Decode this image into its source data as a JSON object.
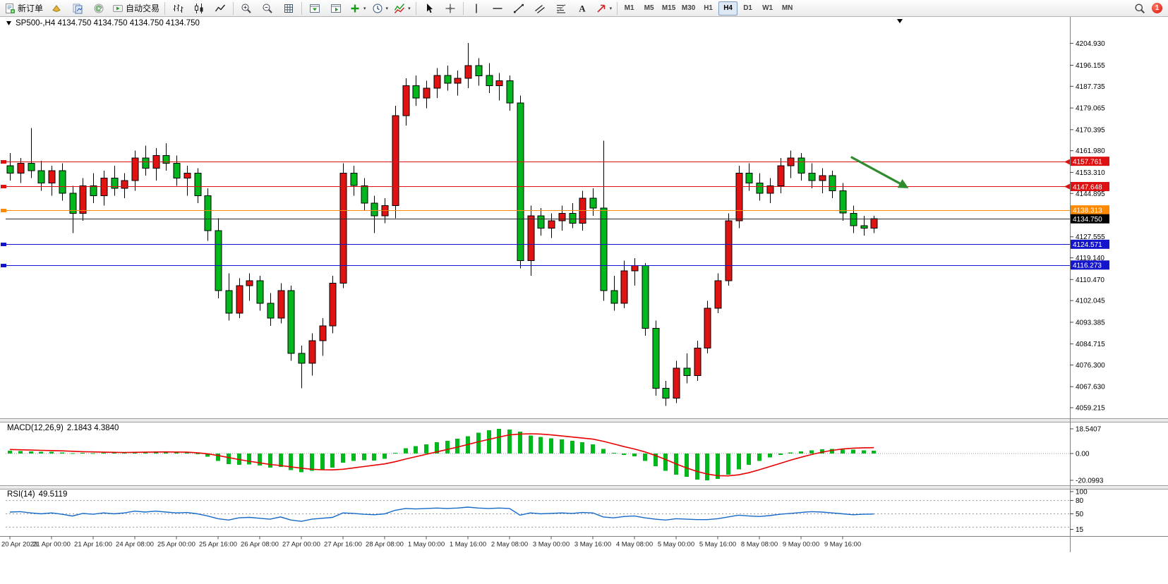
{
  "toolbar": {
    "new_order_label": "新订单",
    "auto_trading_label": "自动交易",
    "timeframes": [
      "M1",
      "M5",
      "M15",
      "M30",
      "H1",
      "H4",
      "D1",
      "W1",
      "MN"
    ],
    "active_timeframe": "H4",
    "badge_count": "1",
    "icons": [
      "new-order-icon",
      "market-icon",
      "profiles-icon",
      "community-icon",
      "autotrading-icon",
      "bar-chart-icon",
      "candlestick-icon",
      "line-chart-icon",
      "zoom-in-icon",
      "zoom-out-icon",
      "grid-icon",
      "tile-windows-icon",
      "cascade-windows-icon",
      "new-chart-icon",
      "timeframe-clock-icon",
      "indicators-icon",
      "cursor-icon",
      "crosshair-icon",
      "vertical-line-icon",
      "horizontal-line-icon",
      "trendline-icon",
      "channel-icon",
      "fibonacci-icon",
      "text-icon",
      "arrows-icon",
      "search-icon",
      "notification-badge"
    ]
  },
  "chart": {
    "header_text": "SP500-,H4 4134.750 4134.750 4134.750 4134.750",
    "symbol": "SP500-",
    "period": "H4"
  },
  "chart_data": [
    {
      "type": "candlestick",
      "title": "SP500-,H4",
      "up_color": "#e01212",
      "down_color": "#00b81c",
      "wick_color": "#000000",
      "ylim": [
        4055.0,
        4210.4
      ],
      "x_labels": [
        "20 Apr 2023",
        "21 Apr 00:00",
        "21 Apr 16:00",
        "24 Apr 08:00",
        "25 Apr 00:00",
        "25 Apr 16:00",
        "26 Apr 08:00",
        "27 Apr 00:00",
        "27 Apr 16:00",
        "28 Apr 08:00",
        "1 May 00:00",
        "1 May 16:00",
        "2 May 08:00",
        "3 May 00:00",
        "3 May 16:00",
        "4 May 08:00",
        "5 May 00:00",
        "5 May 16:00",
        "8 May 08:00",
        "9 May 00:00",
        "9 May 16:00"
      ],
      "y_ticks": [
        "4204.930",
        "4196.155",
        "4187.735",
        "4179.065",
        "4170.395",
        "4161.980",
        "4153.310",
        "4144.895",
        "4127.555",
        "4119.140",
        "4110.470",
        "4102.045",
        "4093.385",
        "4084.715",
        "4076.300",
        "4067.630",
        "4059.215"
      ],
      "hlines": [
        {
          "label": "4157.761",
          "value": 4157.761,
          "color": "#dd1111",
          "left_marker": true,
          "right_marker": true,
          "is_current_price": false
        },
        {
          "label": "4147.648",
          "value": 4147.648,
          "color": "#dd1111",
          "left_marker": true,
          "right_marker": true,
          "is_current_price": false
        },
        {
          "label": "4138.313",
          "value": 4138.313,
          "color": "#ff8a00",
          "left_marker": true,
          "right_marker": false,
          "is_current_price": false
        },
        {
          "label": "4134.750",
          "value": 4134.75,
          "color": "#2a2a2a",
          "left_marker": false,
          "right_marker": false,
          "is_current_price": true
        },
        {
          "label": "4124.571",
          "value": 4124.571,
          "color": "#1414cc",
          "left_marker": true,
          "right_marker": false,
          "is_current_price": false
        },
        {
          "label": "4116.273",
          "value": 4116.273,
          "color": "#1414cc",
          "left_marker": true,
          "right_marker": false,
          "is_current_price": false
        }
      ],
      "annotation": {
        "type": "arrow",
        "from_index": 80.8,
        "from_price": 4159.5,
        "to_index": 85.8,
        "to_price": 4148.2,
        "color": "#2e8b2e"
      },
      "ohlc": [
        [
          4156,
          4161,
          4150,
          4153
        ],
        [
          4153,
          4159,
          4149,
          4157
        ],
        [
          4157,
          4171,
          4151,
          4154
        ],
        [
          4154,
          4158,
          4146,
          4149
        ],
        [
          4149,
          4156,
          4144,
          4154
        ],
        [
          4154,
          4157,
          4142,
          4145
        ],
        [
          4145,
          4148,
          4129,
          4137
        ],
        [
          4137,
          4151,
          4134,
          4148
        ],
        [
          4148,
          4153,
          4141,
          4144
        ],
        [
          4144,
          4154,
          4140,
          4151
        ],
        [
          4151,
          4156,
          4144,
          4147
        ],
        [
          4147,
          4153,
          4143,
          4150
        ],
        [
          4150,
          4162,
          4146,
          4159
        ],
        [
          4159,
          4164,
          4152,
          4155
        ],
        [
          4155,
          4163,
          4150,
          4160
        ],
        [
          4160,
          4165,
          4154,
          4157
        ],
        [
          4157,
          4160,
          4148,
          4151
        ],
        [
          4151,
          4156,
          4144,
          4153
        ],
        [
          4153,
          4155,
          4141,
          4144
        ],
        [
          4144,
          4147,
          4126,
          4130
        ],
        [
          4130,
          4135,
          4103,
          4106
        ],
        [
          4106,
          4113,
          4094,
          4097
        ],
        [
          4097,
          4111,
          4095,
          4108
        ],
        [
          4108,
          4113,
          4102,
          4110
        ],
        [
          4110,
          4112,
          4098,
          4101
        ],
        [
          4101,
          4105,
          4092,
          4095
        ],
        [
          4095,
          4109,
          4093,
          4106
        ],
        [
          4106,
          4108,
          4078,
          4081
        ],
        [
          4081,
          4084,
          4067,
          4077
        ],
        [
          4077,
          4089,
          4072,
          4086
        ],
        [
          4086,
          4095,
          4080,
          4092
        ],
        [
          4092,
          4112,
          4089,
          4109
        ],
        [
          4109,
          4157,
          4107,
          4153
        ],
        [
          4153,
          4156,
          4144,
          4148
        ],
        [
          4148,
          4151,
          4138,
          4141
        ],
        [
          4141,
          4144,
          4129,
          4136
        ],
        [
          4136,
          4143,
          4133,
          4140
        ],
        [
          4140,
          4180,
          4135,
          4176
        ],
        [
          4176,
          4191,
          4172,
          4188
        ],
        [
          4188,
          4192,
          4180,
          4183
        ],
        [
          4183,
          4190,
          4179,
          4187
        ],
        [
          4187,
          4195,
          4183,
          4192
        ],
        [
          4192,
          4196,
          4186,
          4189
        ],
        [
          4189,
          4194,
          4184,
          4191
        ],
        [
          4191,
          4205,
          4187,
          4196
        ],
        [
          4196,
          4199,
          4188,
          4192
        ],
        [
          4192,
          4197,
          4185,
          4188
        ],
        [
          4188,
          4193,
          4182,
          4190
        ],
        [
          4190,
          4192,
          4178,
          4181
        ],
        [
          4181,
          4184,
          4115,
          4118
        ],
        [
          4118,
          4140,
          4112,
          4136
        ],
        [
          4136,
          4139,
          4128,
          4131
        ],
        [
          4131,
          4137,
          4127,
          4134
        ],
        [
          4134,
          4140,
          4130,
          4137
        ],
        [
          4137,
          4141,
          4131,
          4133
        ],
        [
          4133,
          4146,
          4130,
          4143
        ],
        [
          4143,
          4147,
          4136,
          4139
        ],
        [
          4139,
          4166,
          4102,
          4106
        ],
        [
          4106,
          4112,
          4098,
          4101
        ],
        [
          4101,
          4118,
          4099,
          4114
        ],
        [
          4114,
          4119,
          4108,
          4116
        ],
        [
          4116,
          4117,
          4088,
          4091
        ],
        [
          4091,
          4094,
          4064,
          4067
        ],
        [
          4067,
          4070,
          4060,
          4063
        ],
        [
          4063,
          4078,
          4061,
          4075
        ],
        [
          4075,
          4081,
          4069,
          4072
        ],
        [
          4072,
          4086,
          4070,
          4083
        ],
        [
          4083,
          4102,
          4081,
          4099
        ],
        [
          4099,
          4113,
          4097,
          4110
        ],
        [
          4110,
          4137,
          4108,
          4134
        ],
        [
          4134,
          4156,
          4131,
          4153
        ],
        [
          4153,
          4157,
          4146,
          4149
        ],
        [
          4149,
          4153,
          4142,
          4145
        ],
        [
          4145,
          4151,
          4141,
          4148
        ],
        [
          4148,
          4159,
          4145,
          4156
        ],
        [
          4156,
          4162,
          4151,
          4159
        ],
        [
          4159,
          4161,
          4150,
          4153
        ],
        [
          4153,
          4157,
          4147,
          4150
        ],
        [
          4150,
          4155,
          4145,
          4152
        ],
        [
          4152,
          4154,
          4143,
          4146
        ],
        [
          4146,
          4149,
          4134,
          4137
        ],
        [
          4137,
          4140,
          4129,
          4132
        ],
        [
          4132,
          4136,
          4128,
          4131
        ],
        [
          4131,
          4136,
          4129,
          4134.75
        ]
      ]
    },
    {
      "type": "bar",
      "title": "MACD(12,26,9)",
      "values_label": "2.1843 4.3840",
      "bar_color": "#00b81c",
      "signal_color": "#e80000",
      "y_ticks": [
        {
          "label": "18.5407",
          "value": 18.5407
        },
        {
          "label": "0.00",
          "value": 0
        },
        {
          "label": "-20.0993",
          "value": -20.0993
        }
      ],
      "histogram": [
        2.0,
        1.8,
        1.6,
        1.3,
        1.2,
        0.8,
        0.2,
        0.5,
        0.3,
        0.6,
        0.4,
        0.6,
        1.2,
        1.3,
        1.6,
        1.4,
        0.9,
        0.7,
        -0.5,
        -2.5,
        -5.5,
        -8.0,
        -8.5,
        -8.2,
        -9.0,
        -10.5,
        -10.0,
        -12.5,
        -14.0,
        -13.0,
        -12.0,
        -10.5,
        -7.0,
        -5.5,
        -5.0,
        -5.2,
        -4.0,
        0.5,
        4.0,
        5.5,
        7.0,
        8.5,
        9.5,
        11.0,
        13.0,
        15.5,
        17.5,
        18.5407,
        18.0,
        16.5,
        13.5,
        12.5,
        11.5,
        10.5,
        9.5,
        8.5,
        7.0,
        3.5,
        0.5,
        -1.0,
        -2.0,
        -5.5,
        -9.5,
        -13.0,
        -16.0,
        -17.5,
        -19.5,
        -20.0993,
        -19.0,
        -16.0,
        -12.0,
        -8.5,
        -5.5,
        -3.0,
        -1.0,
        0.8,
        1.5,
        2.5,
        3.2,
        3.5,
        3.0,
        2.8,
        2.4,
        2.1843
      ],
      "signal": [
        3.0,
        2.8,
        2.6,
        2.4,
        2.2,
        2.0,
        1.7,
        1.4,
        1.2,
        1.0,
        0.9,
        0.8,
        0.9,
        1.0,
        1.1,
        1.2,
        1.1,
        1.0,
        0.6,
        -0.2,
        -1.5,
        -3.0,
        -4.5,
        -5.8,
        -7.0,
        -8.2,
        -9.0,
        -10.0,
        -11.0,
        -11.8,
        -12.2,
        -12.3,
        -11.8,
        -10.8,
        -9.8,
        -8.8,
        -7.8,
        -6.2,
        -4.2,
        -2.4,
        -0.6,
        1.2,
        3.0,
        4.8,
        6.8,
        8.8,
        10.6,
        12.4,
        14.0,
        14.6,
        14.8,
        14.6,
        14.0,
        13.2,
        12.4,
        11.6,
        10.8,
        9.2,
        7.2,
        5.2,
        3.4,
        1.2,
        -1.5,
        -4.5,
        -7.8,
        -10.8,
        -13.4,
        -15.4,
        -16.6,
        -16.8,
        -16.0,
        -14.4,
        -12.2,
        -9.8,
        -7.4,
        -5.0,
        -2.8,
        -0.8,
        1.0,
        2.4,
        3.4,
        4.0,
        4.3,
        4.384
      ]
    },
    {
      "type": "line",
      "title": "RSI(14)",
      "values_label": "49.5119",
      "line_color": "#1569c7",
      "levels": [
        80,
        50,
        20
      ],
      "y_ticks": [
        {
          "label": "100",
          "value": 100
        },
        {
          "label": "80",
          "value": 80
        },
        {
          "label": "50",
          "value": 50
        },
        {
          "label": "15",
          "value": 15
        }
      ],
      "values": [
        54,
        55,
        52,
        50,
        52,
        49,
        45,
        51,
        49,
        52,
        50,
        52,
        56,
        54,
        56,
        54,
        52,
        53,
        50,
        45,
        39,
        36,
        41,
        42,
        40,
        38,
        43,
        36,
        33,
        38,
        40,
        42,
        52,
        51,
        49,
        48,
        50,
        58,
        62,
        61,
        62,
        63,
        62,
        63,
        65,
        63,
        62,
        63,
        62,
        47,
        52,
        50,
        51,
        52,
        51,
        53,
        52,
        43,
        41,
        44,
        45,
        41,
        38,
        36,
        39,
        38,
        37,
        37,
        39,
        43,
        47,
        45,
        44,
        46,
        49,
        51,
        53,
        55,
        54,
        52,
        50,
        48,
        49,
        49.5119
      ]
    }
  ]
}
